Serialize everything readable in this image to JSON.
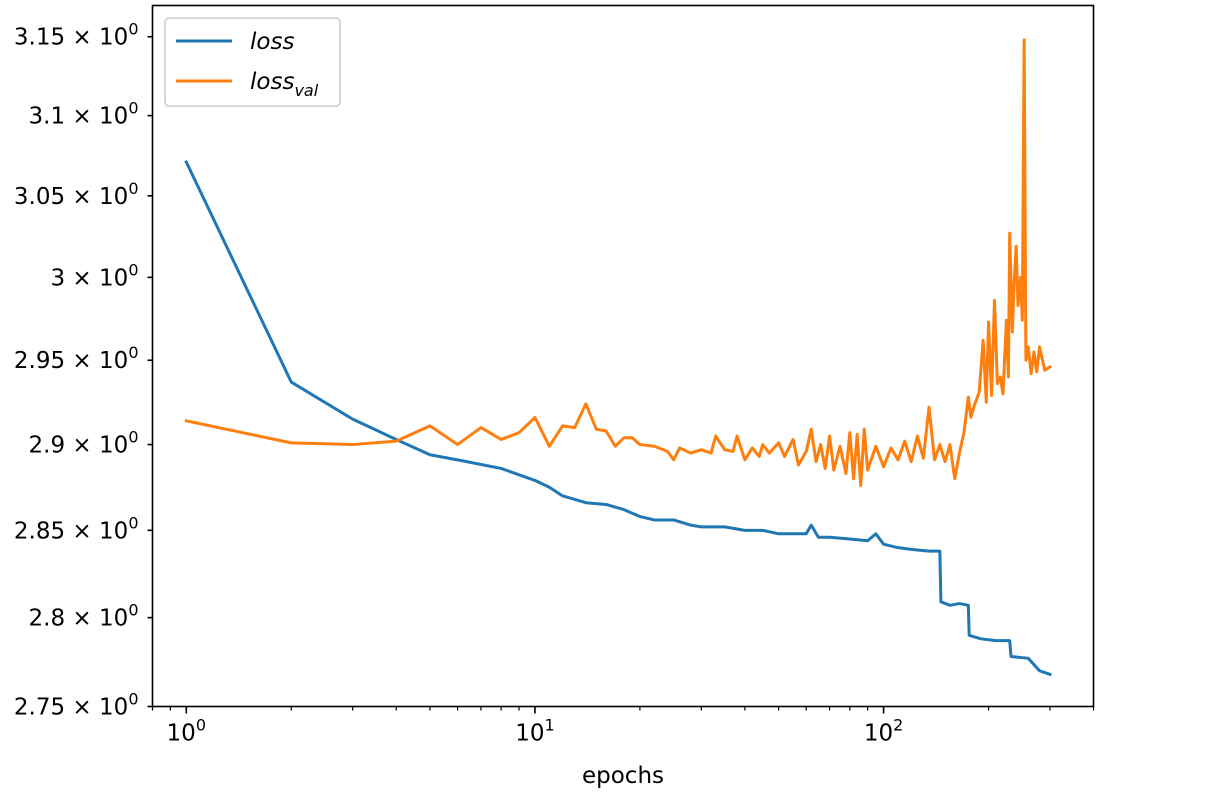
{
  "chart_data": {
    "type": "line",
    "xlabel": "epochs",
    "ylabel": "",
    "xscale": "log",
    "yscale": "log",
    "xlim": [
      0.8,
      400
    ],
    "ylim": [
      2.75,
      3.17
    ],
    "grid": false,
    "legend_position": "top-left",
    "x_ticks": [
      {
        "value": 1,
        "base": "10",
        "exp": "0"
      },
      {
        "value": 10,
        "base": "10",
        "exp": "1"
      },
      {
        "value": 100,
        "base": "10",
        "exp": "2"
      }
    ],
    "y_ticks": [
      {
        "value": 2.75,
        "mant": "2.75",
        "base": "10",
        "exp": "0"
      },
      {
        "value": 2.8,
        "mant": "2.8",
        "base": "10",
        "exp": "0"
      },
      {
        "value": 2.85,
        "mant": "2.85",
        "base": "10",
        "exp": "0"
      },
      {
        "value": 2.9,
        "mant": "2.9",
        "base": "10",
        "exp": "0"
      },
      {
        "value": 2.95,
        "mant": "2.95",
        "base": "10",
        "exp": "0"
      },
      {
        "value": 3.0,
        "mant": "3",
        "base": "10",
        "exp": "0"
      },
      {
        "value": 3.05,
        "mant": "3.05",
        "base": "10",
        "exp": "0"
      },
      {
        "value": 3.1,
        "mant": "3.1",
        "base": "10",
        "exp": "0"
      },
      {
        "value": 3.15,
        "mant": "3.15",
        "base": "10",
        "exp": "0"
      }
    ],
    "series": [
      {
        "name": "loss",
        "color": "#1f77b4",
        "points": [
          [
            1,
            3.071
          ],
          [
            2,
            2.937
          ],
          [
            3,
            2.915
          ],
          [
            4,
            2.903
          ],
          [
            5,
            2.894
          ],
          [
            6,
            2.891
          ],
          [
            8,
            2.886
          ],
          [
            10,
            2.879
          ],
          [
            11,
            2.875
          ],
          [
            12,
            2.87
          ],
          [
            14,
            2.866
          ],
          [
            16,
            2.865
          ],
          [
            18,
            2.862
          ],
          [
            20,
            2.858
          ],
          [
            22,
            2.856
          ],
          [
            25,
            2.856
          ],
          [
            28,
            2.853
          ],
          [
            30,
            2.852
          ],
          [
            35,
            2.852
          ],
          [
            40,
            2.85
          ],
          [
            45,
            2.85
          ],
          [
            50,
            2.848
          ],
          [
            55,
            2.848
          ],
          [
            60,
            2.848
          ],
          [
            62,
            2.853
          ],
          [
            65,
            2.846
          ],
          [
            70,
            2.846
          ],
          [
            80,
            2.845
          ],
          [
            90,
            2.844
          ],
          [
            95,
            2.848
          ],
          [
            100,
            2.842
          ],
          [
            110,
            2.84
          ],
          [
            120,
            2.839
          ],
          [
            135,
            2.838
          ],
          [
            145,
            2.838
          ],
          [
            146,
            2.809
          ],
          [
            155,
            2.807
          ],
          [
            165,
            2.808
          ],
          [
            175,
            2.807
          ],
          [
            176,
            2.79
          ],
          [
            190,
            2.788
          ],
          [
            210,
            2.787
          ],
          [
            230,
            2.787
          ],
          [
            232,
            2.778
          ],
          [
            260,
            2.777
          ],
          [
            280,
            2.77
          ],
          [
            300,
            2.768
          ]
        ]
      },
      {
        "name": "loss",
        "subscript": "val",
        "color": "#ff7f0e",
        "points": [
          [
            1,
            2.914
          ],
          [
            2,
            2.901
          ],
          [
            3,
            2.9
          ],
          [
            4,
            2.902
          ],
          [
            5,
            2.911
          ],
          [
            6,
            2.9
          ],
          [
            7,
            2.91
          ],
          [
            8,
            2.903
          ],
          [
            9,
            2.907
          ],
          [
            10,
            2.916
          ],
          [
            11,
            2.899
          ],
          [
            12,
            2.911
          ],
          [
            13,
            2.91
          ],
          [
            14,
            2.924
          ],
          [
            15,
            2.909
          ],
          [
            16,
            2.908
          ],
          [
            17,
            2.899
          ],
          [
            18,
            2.904
          ],
          [
            19,
            2.904
          ],
          [
            20,
            2.9
          ],
          [
            22,
            2.899
          ],
          [
            24,
            2.896
          ],
          [
            25,
            2.891
          ],
          [
            26,
            2.898
          ],
          [
            28,
            2.895
          ],
          [
            30,
            2.897
          ],
          [
            32,
            2.895
          ],
          [
            33,
            2.905
          ],
          [
            35,
            2.897
          ],
          [
            37,
            2.896
          ],
          [
            38,
            2.905
          ],
          [
            40,
            2.891
          ],
          [
            42,
            2.898
          ],
          [
            44,
            2.893
          ],
          [
            45,
            2.9
          ],
          [
            47,
            2.895
          ],
          [
            50,
            2.901
          ],
          [
            52,
            2.893
          ],
          [
            55,
            2.903
          ],
          [
            57,
            2.888
          ],
          [
            60,
            2.896
          ],
          [
            62,
            2.909
          ],
          [
            64,
            2.89
          ],
          [
            66,
            2.9
          ],
          [
            68,
            2.886
          ],
          [
            70,
            2.905
          ],
          [
            72,
            2.885
          ],
          [
            75,
            2.899
          ],
          [
            78,
            2.883
          ],
          [
            80,
            2.907
          ],
          [
            82,
            2.88
          ],
          [
            84,
            2.906
          ],
          [
            86,
            2.876
          ],
          [
            88,
            2.909
          ],
          [
            90,
            2.885
          ],
          [
            95,
            2.899
          ],
          [
            100,
            2.887
          ],
          [
            105,
            2.898
          ],
          [
            110,
            2.891
          ],
          [
            115,
            2.902
          ],
          [
            120,
            2.89
          ],
          [
            125,
            2.905
          ],
          [
            130,
            2.892
          ],
          [
            135,
            2.922
          ],
          [
            140,
            2.891
          ],
          [
            145,
            2.9
          ],
          [
            150,
            2.89
          ],
          [
            155,
            2.9
          ],
          [
            160,
            2.88
          ],
          [
            165,
            2.895
          ],
          [
            170,
            2.907
          ],
          [
            175,
            2.928
          ],
          [
            178,
            2.916
          ],
          [
            182,
            2.923
          ],
          [
            188,
            2.931
          ],
          [
            193,
            2.962
          ],
          [
            197,
            2.925
          ],
          [
            200,
            2.973
          ],
          [
            204,
            2.929
          ],
          [
            208,
            2.986
          ],
          [
            212,
            2.936
          ],
          [
            216,
            2.94
          ],
          [
            220,
            2.93
          ],
          [
            225,
            2.974
          ],
          [
            228,
            2.94
          ],
          [
            230,
            3.027
          ],
          [
            234,
            2.967
          ],
          [
            237,
            2.998
          ],
          [
            240,
            3.019
          ],
          [
            243,
            2.983
          ],
          [
            247,
            3.0
          ],
          [
            250,
            2.974
          ],
          [
            253,
            3.148
          ],
          [
            256,
            2.95
          ],
          [
            260,
            2.958
          ],
          [
            265,
            2.942
          ],
          [
            270,
            2.955
          ],
          [
            275,
            2.943
          ],
          [
            280,
            2.958
          ],
          [
            290,
            2.944
          ],
          [
            300,
            2.946
          ]
        ]
      }
    ]
  }
}
